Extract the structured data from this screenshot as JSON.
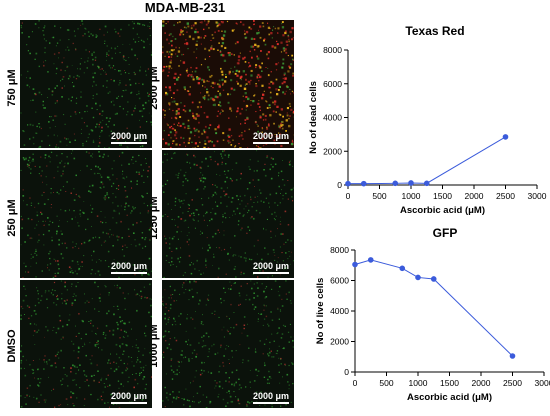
{
  "figure_title": "MDA-MB-231",
  "scale_bar_label": "2000 μm",
  "panels": {
    "left": [
      "750 μM",
      "250 μM",
      "DMSO"
    ],
    "right": [
      "2500 μM",
      "1250 μM",
      "1000 μM"
    ]
  },
  "chart_data": [
    {
      "type": "line",
      "title": "Texas Red",
      "xlabel": "Ascorbic acid (μM)",
      "ylabel": "No of dead cells",
      "xlim": [
        0,
        3000
      ],
      "ylim": [
        0,
        8000
      ],
      "xticks": [
        0,
        500,
        1000,
        1500,
        2000,
        2500,
        3000
      ],
      "yticks": [
        0,
        2000,
        4000,
        6000,
        8000
      ],
      "x": [
        0,
        250,
        750,
        1000,
        1250,
        2500
      ],
      "y": [
        80,
        80,
        100,
        120,
        100,
        2850
      ],
      "color": "#3b5bdb",
      "grid": false
    },
    {
      "type": "line",
      "title": "GFP",
      "xlabel": "Ascorbic acid (μM)",
      "ylabel": "No of live cells",
      "xlim": [
        0,
        3000
      ],
      "ylim": [
        0,
        8000
      ],
      "xticks": [
        0,
        500,
        1000,
        1500,
        2000,
        2500,
        3000
      ],
      "yticks": [
        0,
        2000,
        4000,
        6000,
        8000
      ],
      "x": [
        0,
        250,
        750,
        1000,
        1250,
        2500
      ],
      "y": [
        7050,
        7350,
        6800,
        6200,
        6100,
        1050
      ],
      "color": "#3b5bdb",
      "grid": false
    }
  ]
}
